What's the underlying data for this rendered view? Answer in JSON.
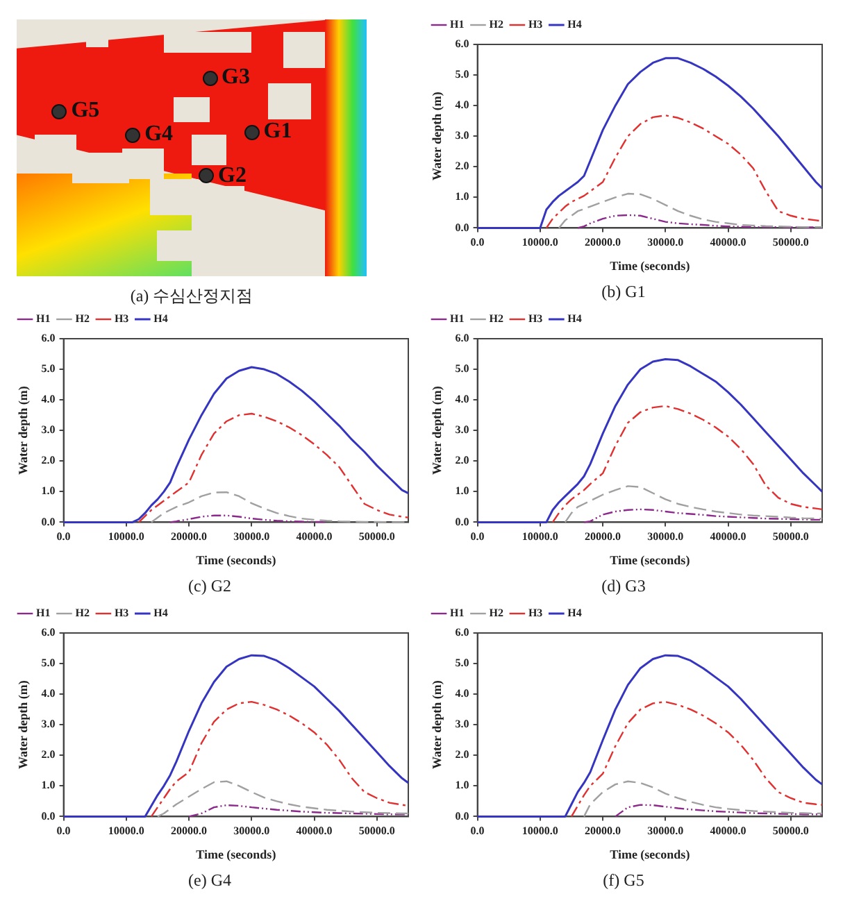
{
  "chart_data": [
    {
      "type": "other",
      "title": "(a) 수심산정지점",
      "annotations": [
        "G3",
        "G5",
        "G4",
        "G1",
        "G2"
      ]
    },
    {
      "type": "line",
      "title": "(b) G1",
      "xlabel": "Time (seconds)",
      "ylabel": "Water depth (m)",
      "legend": "top left",
      "x": [
        0,
        10000,
        11000,
        12000,
        13000,
        14000,
        15000,
        16000,
        17000,
        18000,
        20000,
        22000,
        24000,
        26000,
        28000,
        30000,
        32000,
        34000,
        36000,
        38000,
        40000,
        42000,
        44000,
        46000,
        48000,
        50000,
        52000,
        54000,
        55000
      ],
      "xlim": [
        0,
        55000
      ],
      "ylim": [
        0,
        6
      ],
      "xticks": [
        {
          "value": 0,
          "label": "0.0"
        },
        {
          "value": 10000,
          "label": "10000.0"
        },
        {
          "value": 20000,
          "label": "20000.0"
        },
        {
          "value": 30000,
          "label": "30000.0"
        },
        {
          "value": 40000,
          "label": "40000.0"
        },
        {
          "value": 50000,
          "label": "50000.0"
        }
      ],
      "yticks": [
        {
          "value": 0,
          "label": "0.0"
        },
        {
          "value": 1,
          "label": "1.0"
        },
        {
          "value": 2,
          "label": "2.0"
        },
        {
          "value": 3,
          "label": "3.0"
        },
        {
          "value": 4,
          "label": "4.0"
        },
        {
          "value": 5,
          "label": "5.0"
        },
        {
          "value": 6,
          "label": "6.0"
        }
      ],
      "series": [
        {
          "name": "H1",
          "color": "#8b2a8b",
          "line_style": "dashed",
          "values": [
            null,
            null,
            null,
            null,
            null,
            null,
            null,
            0,
            0.05,
            0.15,
            0.3,
            0.4,
            0.42,
            0.4,
            0.3,
            0.2,
            0.15,
            0.12,
            0.1,
            0.07,
            0.05,
            0.04,
            0.03,
            0.03,
            0.03,
            0.02,
            0.02,
            0.02,
            0.02
          ]
        },
        {
          "name": "H2",
          "color": "#a0a0a0",
          "line_style": "dashed",
          "values": [
            null,
            null,
            null,
            null,
            0,
            0.25,
            0.4,
            0.55,
            0.62,
            0.7,
            0.85,
            1.0,
            1.12,
            1.1,
            0.95,
            0.75,
            0.55,
            0.4,
            0.28,
            0.2,
            0.15,
            0.1,
            0.08,
            0.06,
            0.05,
            0.04,
            0.03,
            0.03,
            0.03
          ]
        },
        {
          "name": "H3",
          "color": "#e03030",
          "line_style": "dashed",
          "values": [
            null,
            null,
            0,
            0.3,
            0.5,
            0.7,
            0.85,
            0.95,
            1.05,
            1.2,
            1.5,
            2.3,
            3.0,
            3.4,
            3.62,
            3.68,
            3.6,
            3.45,
            3.25,
            3.0,
            2.75,
            2.4,
            1.95,
            1.2,
            0.55,
            0.4,
            0.3,
            0.25,
            0.22
          ]
        },
        {
          "name": "H4",
          "color": "#3535c0",
          "line_style": "solid",
          "values": [
            0,
            0,
            0.6,
            0.85,
            1.05,
            1.2,
            1.35,
            1.5,
            1.7,
            2.2,
            3.2,
            4.0,
            4.7,
            5.1,
            5.4,
            5.55,
            5.55,
            5.4,
            5.2,
            4.95,
            4.65,
            4.3,
            3.9,
            3.45,
            3.0,
            2.5,
            2.0,
            1.5,
            1.3
          ]
        }
      ]
    },
    {
      "type": "line",
      "title": "(c) G2",
      "xlabel": "Time (seconds)",
      "ylabel": "Water depth (m)",
      "legend": "top left",
      "x": [
        0,
        10000,
        11000,
        12000,
        13000,
        14000,
        15000,
        16000,
        17000,
        18000,
        20000,
        22000,
        24000,
        26000,
        28000,
        30000,
        32000,
        34000,
        36000,
        38000,
        40000,
        42000,
        44000,
        46000,
        48000,
        50000,
        52000,
        54000,
        55000
      ],
      "xlim": [
        0,
        55000
      ],
      "ylim": [
        0,
        6
      ],
      "xticks": [
        {
          "value": 0,
          "label": "0.0"
        },
        {
          "value": 10000,
          "label": "10000.0"
        },
        {
          "value": 20000,
          "label": "20000.0"
        },
        {
          "value": 30000,
          "label": "30000.0"
        },
        {
          "value": 40000,
          "label": "40000.0"
        },
        {
          "value": 50000,
          "label": "50000.0"
        }
      ],
      "yticks": [
        {
          "value": 0,
          "label": "0.0"
        },
        {
          "value": 1,
          "label": "1.0"
        },
        {
          "value": 2,
          "label": "2.0"
        },
        {
          "value": 3,
          "label": "3.0"
        },
        {
          "value": 4,
          "label": "4.0"
        },
        {
          "value": 5,
          "label": "5.0"
        },
        {
          "value": 6,
          "label": "6.0"
        }
      ],
      "series": [
        {
          "name": "H1",
          "color": "#8b2a8b",
          "line_style": "dashed",
          "values": [
            null,
            null,
            null,
            null,
            null,
            null,
            null,
            null,
            0,
            0.03,
            0.1,
            0.18,
            0.22,
            0.22,
            0.18,
            0.12,
            0.08,
            0.05,
            0.03,
            0.02,
            0.01,
            0.01,
            null,
            null,
            null,
            null,
            null,
            null,
            null
          ]
        },
        {
          "name": "H2",
          "color": "#a0a0a0",
          "line_style": "dashed",
          "values": [
            null,
            null,
            null,
            null,
            null,
            0,
            0.15,
            0.3,
            0.4,
            0.5,
            0.65,
            0.85,
            0.97,
            0.98,
            0.85,
            0.62,
            0.45,
            0.3,
            0.2,
            0.12,
            0.08,
            0.05,
            0.03,
            0.02,
            0.01,
            0.01,
            0,
            0,
            0
          ]
        },
        {
          "name": "H3",
          "color": "#e03030",
          "line_style": "dashed",
          "values": [
            null,
            null,
            null,
            0,
            0.2,
            0.4,
            0.55,
            0.7,
            0.85,
            1.0,
            1.3,
            2.2,
            2.9,
            3.3,
            3.5,
            3.55,
            3.45,
            3.3,
            3.1,
            2.85,
            2.55,
            2.2,
            1.8,
            1.2,
            0.6,
            0.4,
            0.25,
            0.18,
            0.15
          ]
        },
        {
          "name": "H4",
          "color": "#3535c0",
          "line_style": "solid",
          "values": [
            0,
            0,
            0,
            0.1,
            0.3,
            0.55,
            0.75,
            1.0,
            1.3,
            1.8,
            2.7,
            3.5,
            4.2,
            4.7,
            4.95,
            5.07,
            5.0,
            4.85,
            4.6,
            4.3,
            3.95,
            3.55,
            3.15,
            2.7,
            2.3,
            1.85,
            1.45,
            1.05,
            0.95
          ]
        }
      ]
    },
    {
      "type": "line",
      "title": "(d) G3",
      "xlabel": "Time (seconds)",
      "ylabel": "Water depth (m)",
      "legend": "top left",
      "x": [
        0,
        10000,
        11000,
        12000,
        13000,
        14000,
        15000,
        16000,
        17000,
        18000,
        20000,
        22000,
        24000,
        26000,
        28000,
        30000,
        32000,
        34000,
        36000,
        38000,
        40000,
        42000,
        44000,
        46000,
        48000,
        50000,
        52000,
        54000,
        55000
      ],
      "xlim": [
        0,
        55000
      ],
      "ylim": [
        0,
        6
      ],
      "xticks": [
        {
          "value": 0,
          "label": "0.0"
        },
        {
          "value": 10000,
          "label": "10000.0"
        },
        {
          "value": 20000,
          "label": "20000.0"
        },
        {
          "value": 30000,
          "label": "30000.0"
        },
        {
          "value": 40000,
          "label": "40000.0"
        },
        {
          "value": 50000,
          "label": "50000.0"
        }
      ],
      "yticks": [
        {
          "value": 0,
          "label": "0.0"
        },
        {
          "value": 1,
          "label": "1.0"
        },
        {
          "value": 2,
          "label": "2.0"
        },
        {
          "value": 3,
          "label": "3.0"
        },
        {
          "value": 4,
          "label": "4.0"
        },
        {
          "value": 5,
          "label": "5.0"
        },
        {
          "value": 6,
          "label": "6.0"
        }
      ],
      "series": [
        {
          "name": "H1",
          "color": "#8b2a8b",
          "line_style": "dashed",
          "values": [
            null,
            null,
            null,
            null,
            null,
            null,
            null,
            null,
            0,
            0.03,
            0.25,
            0.35,
            0.4,
            0.42,
            0.4,
            0.35,
            0.3,
            0.27,
            0.24,
            0.2,
            0.18,
            0.16,
            0.14,
            0.12,
            0.11,
            0.1,
            0.09,
            0.08,
            0.08
          ]
        },
        {
          "name": "H2",
          "color": "#a0a0a0",
          "line_style": "dashed",
          "values": [
            null,
            null,
            null,
            null,
            null,
            0,
            0.3,
            0.5,
            0.6,
            0.7,
            0.9,
            1.05,
            1.18,
            1.15,
            0.95,
            0.75,
            0.6,
            0.5,
            0.42,
            0.35,
            0.3,
            0.25,
            0.22,
            0.2,
            0.18,
            0.15,
            0.13,
            0.12,
            0.12
          ]
        },
        {
          "name": "H3",
          "color": "#e03030",
          "line_style": "dashed",
          "values": [
            null,
            null,
            null,
            0,
            0.3,
            0.55,
            0.75,
            0.9,
            1.05,
            1.25,
            1.6,
            2.5,
            3.25,
            3.6,
            3.75,
            3.8,
            3.7,
            3.55,
            3.35,
            3.1,
            2.8,
            2.4,
            1.9,
            1.2,
            0.8,
            0.6,
            0.5,
            0.45,
            0.42
          ]
        },
        {
          "name": "H4",
          "color": "#3535c0",
          "line_style": "solid",
          "values": [
            0,
            0,
            0,
            0.4,
            0.65,
            0.85,
            1.05,
            1.25,
            1.5,
            1.9,
            2.9,
            3.8,
            4.5,
            5.0,
            5.25,
            5.33,
            5.3,
            5.1,
            4.85,
            4.6,
            4.25,
            3.85,
            3.4,
            2.95,
            2.5,
            2.05,
            1.6,
            1.2,
            1.0
          ]
        }
      ]
    },
    {
      "type": "line",
      "title": "(e) G4",
      "xlabel": "Time (seconds)",
      "ylabel": "Water depth (m)",
      "legend": "top left",
      "x": [
        0,
        10000,
        11000,
        12000,
        13000,
        14000,
        15000,
        16000,
        17000,
        18000,
        20000,
        22000,
        24000,
        26000,
        28000,
        30000,
        32000,
        34000,
        36000,
        38000,
        40000,
        42000,
        44000,
        46000,
        48000,
        50000,
        52000,
        54000,
        55000
      ],
      "xlim": [
        0,
        55000
      ],
      "ylim": [
        0,
        6
      ],
      "xticks": [
        {
          "value": 0,
          "label": "0.0"
        },
        {
          "value": 10000,
          "label": "10000.0"
        },
        {
          "value": 20000,
          "label": "20000.0"
        },
        {
          "value": 30000,
          "label": "30000.0"
        },
        {
          "value": 40000,
          "label": "40000.0"
        },
        {
          "value": 50000,
          "label": "50000.0"
        }
      ],
      "yticks": [
        {
          "value": 0,
          "label": "0.0"
        },
        {
          "value": 1,
          "label": "1.0"
        },
        {
          "value": 2,
          "label": "2.0"
        },
        {
          "value": 3,
          "label": "3.0"
        },
        {
          "value": 4,
          "label": "4.0"
        },
        {
          "value": 5,
          "label": "5.0"
        },
        {
          "value": 6,
          "label": "6.0"
        }
      ],
      "series": [
        {
          "name": "H1",
          "color": "#8b2a8b",
          "line_style": "dashed",
          "values": [
            null,
            null,
            null,
            null,
            null,
            null,
            null,
            null,
            null,
            null,
            0,
            0.1,
            0.3,
            0.37,
            0.35,
            0.3,
            0.26,
            0.22,
            0.19,
            0.16,
            0.14,
            0.12,
            0.11,
            0.1,
            0.09,
            0.08,
            0.07,
            0.07,
            0.07
          ]
        },
        {
          "name": "H2",
          "color": "#a0a0a0",
          "line_style": "dashed",
          "values": [
            null,
            null,
            null,
            null,
            null,
            null,
            0,
            0.1,
            0.25,
            0.4,
            0.65,
            0.9,
            1.12,
            1.15,
            1.0,
            0.8,
            0.62,
            0.5,
            0.4,
            0.32,
            0.27,
            0.22,
            0.19,
            0.16,
            0.14,
            0.12,
            0.11,
            0.1,
            0.1
          ]
        },
        {
          "name": "H3",
          "color": "#e03030",
          "line_style": "dashed",
          "values": [
            null,
            null,
            null,
            null,
            null,
            0,
            0.3,
            0.6,
            0.9,
            1.15,
            1.45,
            2.4,
            3.1,
            3.5,
            3.7,
            3.75,
            3.65,
            3.5,
            3.3,
            3.05,
            2.75,
            2.35,
            1.85,
            1.25,
            0.8,
            0.6,
            0.45,
            0.38,
            0.35
          ]
        },
        {
          "name": "H4",
          "color": "#3535c0",
          "line_style": "solid",
          "values": [
            0,
            0,
            0,
            0,
            0,
            0.35,
            0.7,
            1.0,
            1.35,
            1.8,
            2.8,
            3.7,
            4.4,
            4.9,
            5.15,
            5.27,
            5.25,
            5.1,
            4.85,
            4.55,
            4.25,
            3.85,
            3.45,
            3.0,
            2.55,
            2.1,
            1.65,
            1.25,
            1.1
          ]
        }
      ]
    },
    {
      "type": "line",
      "title": "(f) G5",
      "xlabel": "Time (seconds)",
      "ylabel": "Water depth (m)",
      "legend": "top left",
      "x": [
        0,
        10000,
        11000,
        12000,
        13000,
        14000,
        15000,
        16000,
        17000,
        18000,
        20000,
        22000,
        24000,
        26000,
        28000,
        30000,
        32000,
        34000,
        36000,
        38000,
        40000,
        42000,
        44000,
        46000,
        48000,
        50000,
        52000,
        54000,
        55000
      ],
      "xlim": [
        0,
        55000
      ],
      "ylim": [
        0,
        6
      ],
      "xticks": [
        {
          "value": 0,
          "label": "0.0"
        },
        {
          "value": 10000,
          "label": "10000.0"
        },
        {
          "value": 20000,
          "label": "20000.0"
        },
        {
          "value": 30000,
          "label": "30000.0"
        },
        {
          "value": 40000,
          "label": "40000.0"
        },
        {
          "value": 50000,
          "label": "50000.0"
        }
      ],
      "yticks": [
        {
          "value": 0,
          "label": "0.0"
        },
        {
          "value": 1,
          "label": "1.0"
        },
        {
          "value": 2,
          "label": "2.0"
        },
        {
          "value": 3,
          "label": "3.0"
        },
        {
          "value": 4,
          "label": "4.0"
        },
        {
          "value": 5,
          "label": "5.0"
        },
        {
          "value": 6,
          "label": "6.0"
        }
      ],
      "series": [
        {
          "name": "H1",
          "color": "#8b2a8b",
          "line_style": "dashed",
          "values": [
            null,
            null,
            null,
            null,
            null,
            null,
            null,
            null,
            null,
            null,
            null,
            0,
            0.3,
            0.38,
            0.37,
            0.32,
            0.27,
            0.23,
            0.2,
            0.17,
            0.15,
            0.13,
            0.11,
            0.1,
            0.09,
            0.08,
            0.07,
            0.07,
            0.07
          ]
        },
        {
          "name": "H2",
          "color": "#a0a0a0",
          "line_style": "dashed",
          "values": [
            null,
            null,
            null,
            null,
            null,
            null,
            null,
            null,
            0,
            0.4,
            0.8,
            1.05,
            1.15,
            1.1,
            0.95,
            0.75,
            0.6,
            0.48,
            0.38,
            0.3,
            0.25,
            0.21,
            0.18,
            0.16,
            0.14,
            0.12,
            0.11,
            0.1,
            0.1
          ]
        },
        {
          "name": "H3",
          "color": "#e03030",
          "line_style": "dashed",
          "values": [
            null,
            null,
            null,
            null,
            null,
            null,
            0,
            0.35,
            0.7,
            1.0,
            1.4,
            2.3,
            3.05,
            3.5,
            3.7,
            3.75,
            3.65,
            3.5,
            3.3,
            3.05,
            2.75,
            2.35,
            1.85,
            1.25,
            0.8,
            0.6,
            0.45,
            0.4,
            0.38
          ]
        },
        {
          "name": "H4",
          "color": "#3535c0",
          "line_style": "solid",
          "values": [
            0,
            0,
            0,
            0,
            0,
            0,
            0.4,
            0.8,
            1.1,
            1.45,
            2.5,
            3.5,
            4.3,
            4.85,
            5.15,
            5.27,
            5.25,
            5.1,
            4.85,
            4.55,
            4.25,
            3.85,
            3.4,
            2.95,
            2.5,
            2.05,
            1.6,
            1.2,
            1.05
          ]
        }
      ]
    }
  ]
}
